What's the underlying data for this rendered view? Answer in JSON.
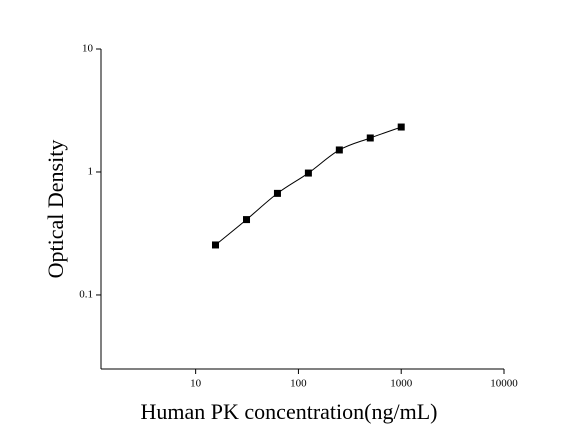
{
  "chart_data": {
    "type": "scatter",
    "x_label": "Human PK concentration(ng/mL)",
    "y_label": "Optical Density",
    "x": [
      15.6,
      31.25,
      62.5,
      125,
      250,
      500,
      1000
    ],
    "series": [
      {
        "values": [
          0.255,
          0.41,
          0.67,
          0.98,
          1.51,
          1.89,
          2.32
        ],
        "color": "#000000"
      }
    ],
    "xscale": "log",
    "yscale": "log",
    "xlim": [
      1.2,
      10000
    ],
    "ylim": [
      0.025,
      10
    ],
    "xticks": [
      10,
      100,
      1000,
      10000
    ],
    "yticks": [
      0.1,
      1,
      10
    ],
    "line": true
  }
}
